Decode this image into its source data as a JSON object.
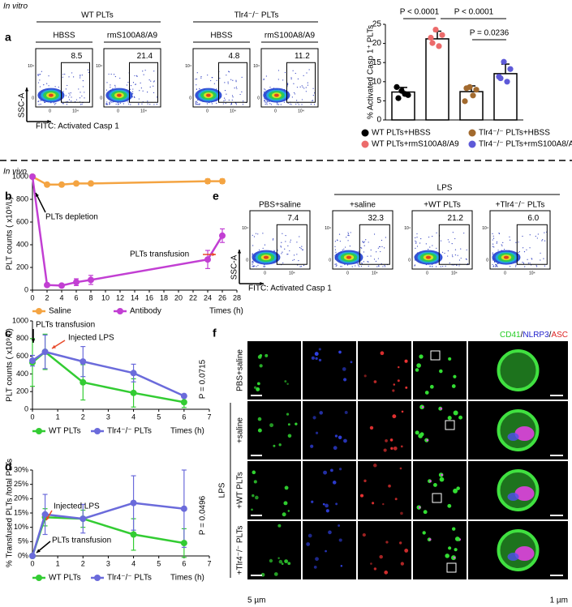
{
  "labels": {
    "in_vitro": "In vitro",
    "in_vivo": "In vivo"
  },
  "panel_letters": [
    "a",
    "b",
    "c",
    "d",
    "e",
    "f"
  ],
  "flow_tick_labels": [
    "0",
    "10⁴"
  ],
  "flow_a": {
    "groups": [
      "WT PLTs",
      "Tlr4⁻/⁻ PLTs"
    ],
    "conditions": [
      "HBSS",
      "rmS100A8/A9",
      "HBSS",
      "rmS100A8/A9"
    ],
    "percentages": [
      "8.5",
      "21.4",
      "4.8",
      "11.2"
    ],
    "y_label": "SSC-A",
    "x_label": "FITC: Activated Casp 1"
  },
  "flow_e": {
    "header_left": "PBS+saline",
    "group": "LPS",
    "conditions": [
      "+saline",
      "+WT PLTs",
      "+Tlr4⁻/⁻ PLTs"
    ],
    "percentages": [
      "7.4",
      "32.3",
      "21.2",
      "6.0"
    ],
    "y_label": "SSC-A",
    "x_label": "FITC: Activated Casp 1"
  },
  "microscopy_f": {
    "channels": [
      "CD41",
      "NLRP3",
      "ASC"
    ],
    "separator": "/",
    "rows": [
      "PBS+saline",
      "+saline",
      "+WT PLTs",
      "+Tlr4⁻/⁻ PLTs"
    ],
    "group": "LPS",
    "scale_bars": [
      "5 µm",
      "1 µm"
    ]
  },
  "chart_data": [
    {
      "type": "bar",
      "y_label": "% Activated Casp 1⁺ PLTs",
      "ylim": [
        0,
        25
      ],
      "yticks": [
        0,
        5,
        10,
        15,
        20,
        25
      ],
      "series": [
        {
          "name": "WT PLTs+HBSS",
          "color": "#000000",
          "values": [
            7.3
          ],
          "errors": [
            1.2
          ],
          "points": [
            8.6,
            7.6,
            6.5,
            6.8,
            5.7
          ]
        },
        {
          "name": "WT PLTs+rmS100A8/A9",
          "color": "#ec6b6b",
          "values": [
            21.2
          ],
          "errors": [
            2.0
          ],
          "points": [
            21.5,
            23.6,
            22.2,
            19.3,
            20.1
          ]
        },
        {
          "name": "Tlr4⁻/⁻ PLTs+HBSS",
          "color": "#a26a2e",
          "values": [
            7.4
          ],
          "errors": [
            1.5
          ],
          "points": [
            4.9,
            8.6,
            7.9,
            6.4,
            8.3
          ]
        },
        {
          "name": "Tlr4⁻/⁻ PLTs+rmS100A8/A9",
          "color": "#5e5ad8",
          "values": [
            12.1
          ],
          "errors": [
            2.5
          ],
          "points": [
            11.3,
            15.2,
            13.3,
            10.0,
            10.9
          ]
        }
      ],
      "annotations": [
        "P < 0.0001",
        "P < 0.0001",
        "P = 0.0236"
      ]
    },
    {
      "type": "line",
      "y_label": "PLT counts ( x10⁹/L)",
      "x_label": "Times (h)",
      "x": [
        0,
        2,
        4,
        6,
        8,
        24,
        26
      ],
      "xlim": [
        0,
        28
      ],
      "xticks": [
        0,
        2,
        4,
        6,
        8,
        10,
        12,
        14,
        16,
        18,
        20,
        22,
        24,
        26,
        28
      ],
      "ylim": [
        0,
        1000
      ],
      "yticks": [
        0,
        200,
        400,
        600,
        800,
        1000
      ],
      "series": [
        {
          "name": "Saline",
          "color": "#f4a442",
          "values": [
            1000,
            930,
            930,
            940,
            940,
            960,
            960
          ],
          "errors": [
            0,
            15,
            15,
            15,
            15,
            20,
            20
          ]
        },
        {
          "name": "Antibody",
          "color": "#c23fd3",
          "values": [
            1000,
            45,
            40,
            70,
            90,
            270,
            480
          ],
          "errors": [
            0,
            15,
            10,
            30,
            40,
            80,
            60
          ]
        }
      ],
      "annotations": [
        "PLTs depletion",
        "PLTs transfusion"
      ]
    },
    {
      "type": "line",
      "y_label": "PLT counts ( x10⁹/L)",
      "x_label": "Times (h)",
      "x": [
        0,
        0.5,
        2,
        4,
        6
      ],
      "xlim": [
        0,
        7
      ],
      "xticks": [
        0,
        1,
        2,
        3,
        4,
        5,
        6,
        7
      ],
      "ylim": [
        0,
        1000
      ],
      "yticks": [
        0,
        200,
        400,
        600,
        800,
        1000
      ],
      "series": [
        {
          "name": "WT PLTs",
          "color": "#33cc33",
          "values": [
            530,
            650,
            305,
            185,
            80
          ],
          "errors": [
            270,
            200,
            200,
            160,
            60
          ]
        },
        {
          "name": "Tlr4⁻/⁻ PLTs",
          "color": "#6b6bdb",
          "values": [
            550,
            650,
            540,
            410,
            150
          ],
          "errors": [
            60,
            190,
            170,
            100,
            20
          ]
        }
      ],
      "annotations": [
        "PLTs transfusion",
        "Injected LPS",
        "P = 0.0715"
      ]
    },
    {
      "type": "line",
      "y_label": "% Transfused PLTs /total PLTs",
      "x_label": "Times (h)",
      "x": [
        0,
        0.5,
        2,
        4,
        6
      ],
      "xlim": [
        0,
        7
      ],
      "xticks": [
        0,
        1,
        2,
        3,
        4,
        5,
        6,
        7
      ],
      "ylim": [
        0,
        30
      ],
      "yticks": [
        {
          "value": 0,
          "label": "0%"
        },
        {
          "value": 5,
          "label": "5%"
        },
        {
          "value": 10,
          "label": "10%"
        },
        {
          "value": 15,
          "label": "15%"
        },
        {
          "value": 20,
          "label": "20%"
        },
        {
          "value": 25,
          "label": "25%"
        },
        {
          "value": 30,
          "label": "30%"
        }
      ],
      "series": [
        {
          "name": "WT PLTs",
          "color": "#33cc33",
          "values": [
            0,
            13.5,
            13,
            7.5,
            4.5
          ],
          "errors": [
            0,
            3,
            3,
            5.5,
            5
          ]
        },
        {
          "name": "Tlr4⁻/⁻ PLTs",
          "color": "#6b6bdb",
          "values": [
            0,
            14.5,
            13,
            18.5,
            16.5
          ],
          "errors": [
            0,
            7,
            5,
            9.5,
            13.5
          ]
        }
      ],
      "annotations": [
        "Injected LPS",
        "PLTs transfusion",
        "P = 0.0496"
      ]
    }
  ]
}
